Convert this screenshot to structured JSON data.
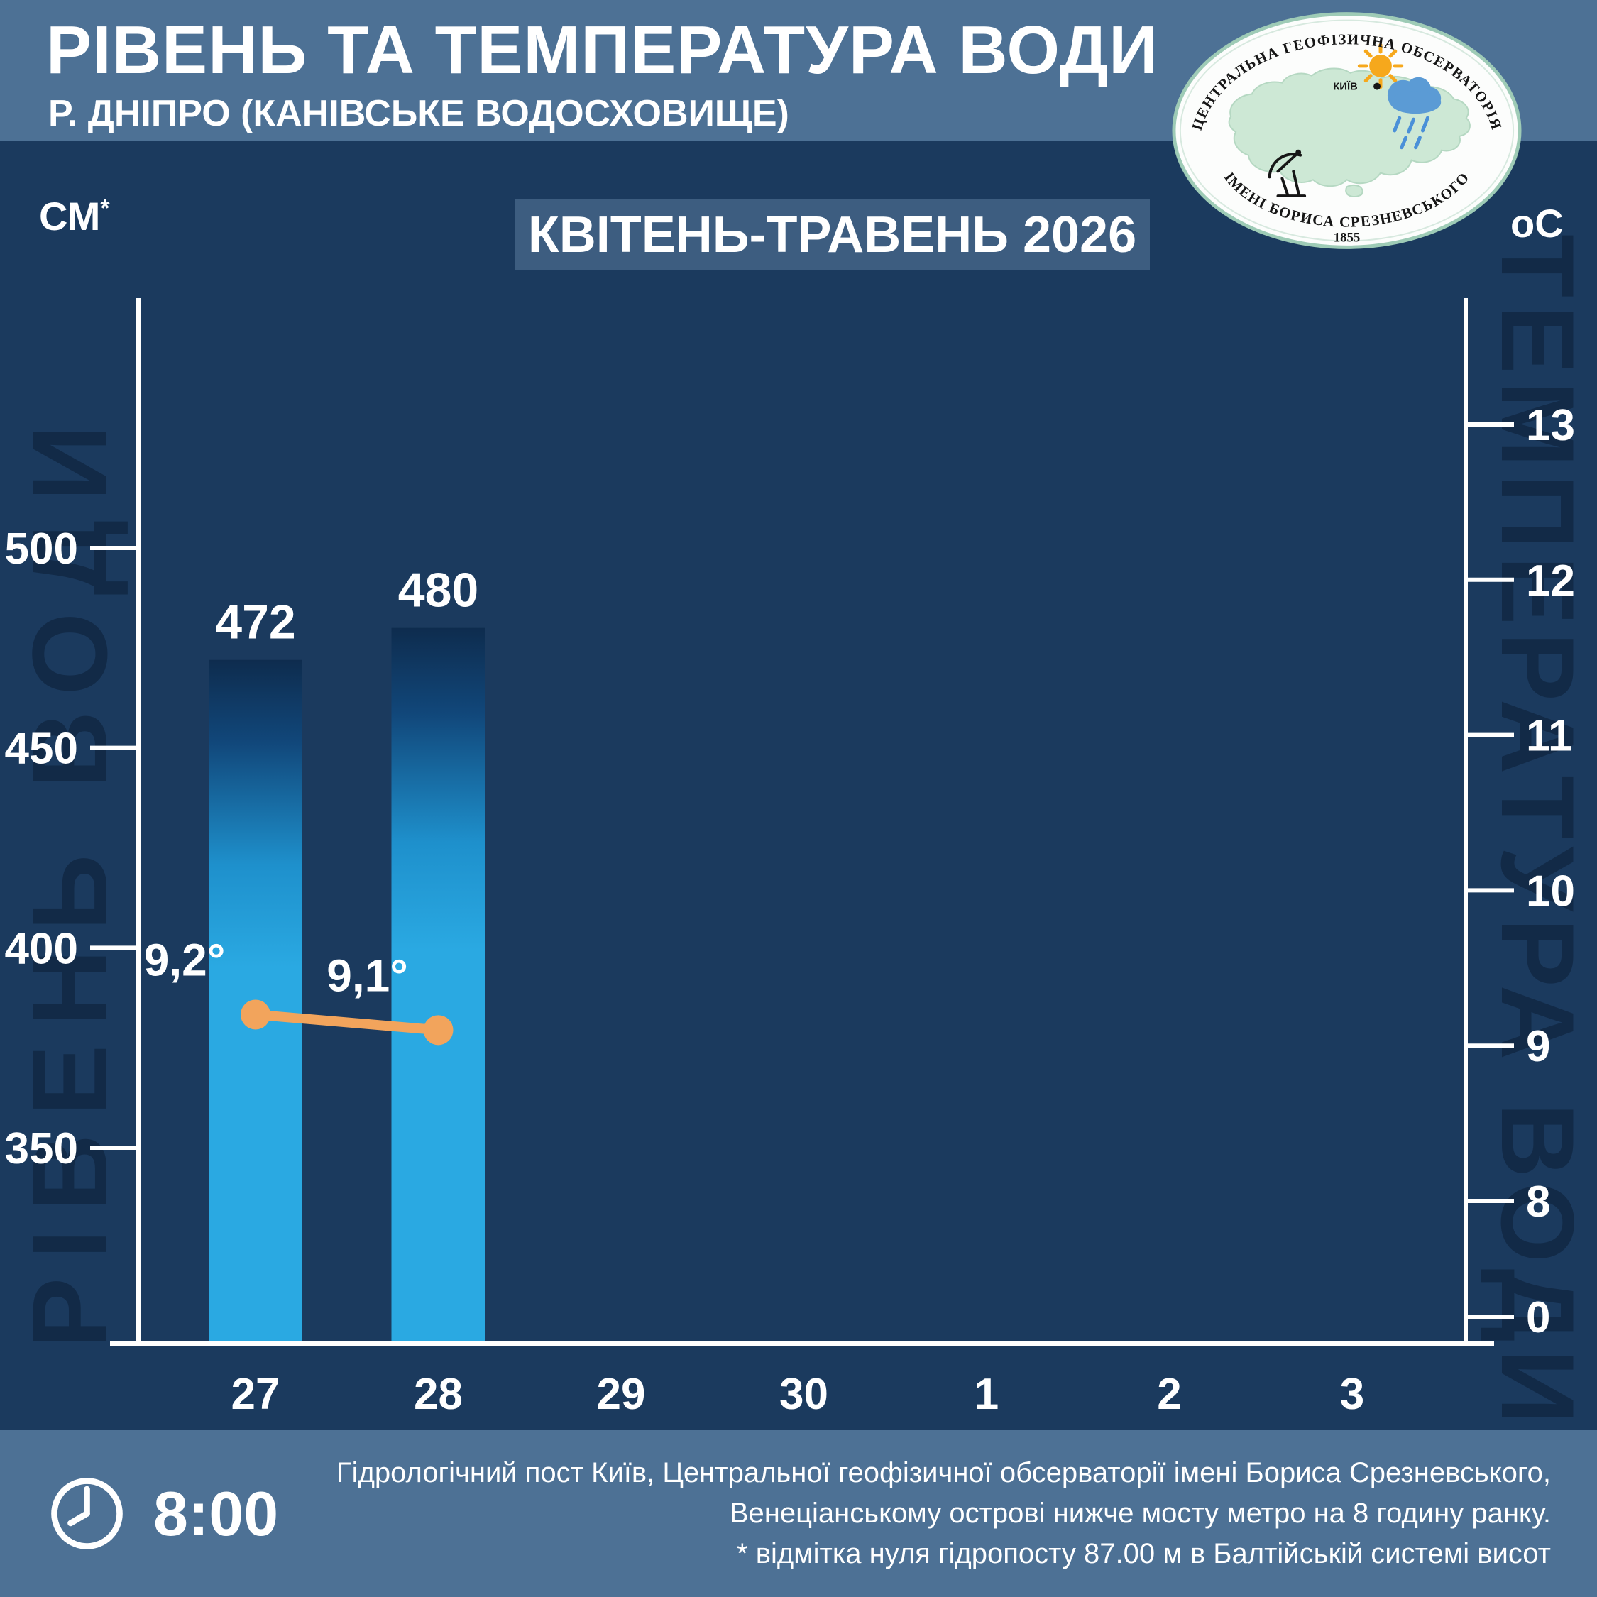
{
  "header": {
    "title": "РІВЕНЬ ТА ТЕМПЕРАТУРА ВОДИ",
    "subtitle": "Р. ДНІПРО (КАНІВСЬКЕ ВОДОСХОВИЩЕ)",
    "period": "КВІТЕНЬ-ТРАВЕНЬ 2026"
  },
  "logo": {
    "top_text": "ЦЕНТРАЛЬНА ГЕОФІЗИЧНА ОБСЕРВАТОРІЯ",
    "bottom_text": "ІМЕНІ БОРИСА СРЕЗНЕВСЬКОГО",
    "year": "1855",
    "city": "КИЇВ"
  },
  "watermarks": {
    "left": "РІВЕНЬ ВОДИ",
    "right": "ТЕМПЕРАТУРА ВОДИ"
  },
  "chart_data": {
    "type": "bar",
    "title": "РІВЕНЬ ТА ТЕМПЕРАТУРА ВОДИ, Р. ДНІПРО (КАНІВСЬКЕ ВОДОСХОВИЩЕ), КВІТЕНЬ-ТРАВЕНЬ 2026",
    "categories": [
      "27",
      "28",
      "29",
      "30",
      "1",
      "2",
      "3"
    ],
    "series": [
      {
        "name": "Рівень води, см",
        "type": "bar",
        "axis": "left",
        "values": [
          472,
          480,
          null,
          null,
          null,
          null,
          null
        ],
        "labels": [
          "472",
          "480",
          null,
          null,
          null,
          null,
          null
        ],
        "color": "#2aa9e2"
      },
      {
        "name": "Температура води, °C",
        "type": "line",
        "axis": "right",
        "values": [
          9.2,
          9.1,
          null,
          null,
          null,
          null,
          null
        ],
        "labels": [
          "9,2°",
          "9,1°",
          null,
          null,
          null,
          null,
          null
        ],
        "color": "#f2a45c"
      }
    ],
    "left_axis": {
      "unit": "СМ",
      "unit_note": "*",
      "ticks": [
        500,
        450,
        400,
        350
      ]
    },
    "right_axis": {
      "unit": "оС",
      "ticks": [
        13,
        12,
        11,
        10,
        9,
        8,
        0
      ]
    },
    "grid": false,
    "legend": "none"
  },
  "footer": {
    "time": "8:00",
    "lines": [
      "Гідрологічний пост Київ, Центральної геофізичної обсерваторії імені Бориса Срезневського,",
      "Венеціанському острові нижче мосту метро  на 8 годину ранку.",
      "* відмітка нуля гідропосту 87.00 м в Балтійській системі висот"
    ]
  }
}
